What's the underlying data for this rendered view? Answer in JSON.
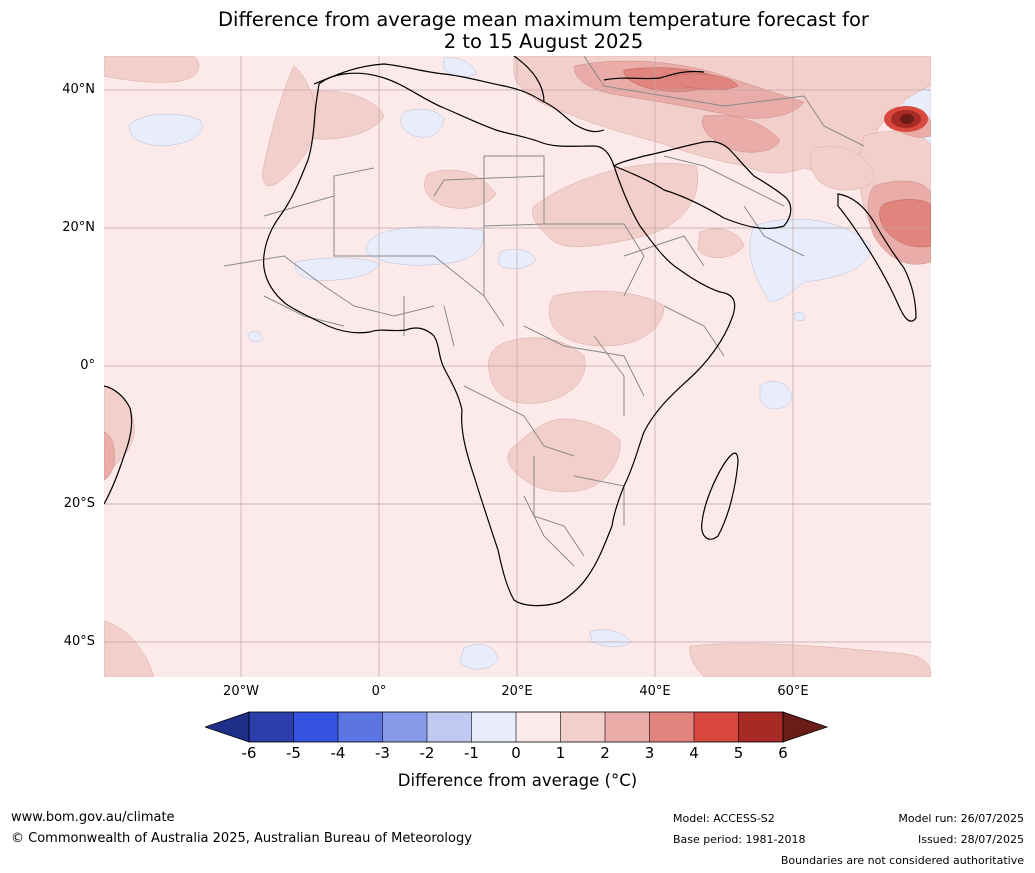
{
  "header": {
    "title_line1": "Difference from average mean maximum temperature forecast for",
    "title_line2": "2 to 15 August 2025"
  },
  "map": {
    "lat_labels": [
      "40°N",
      "20°N",
      "0°",
      "20°S",
      "40°S"
    ],
    "lon_labels": [
      "20°W",
      "0°",
      "20°E",
      "40°E",
      "60°E"
    ],
    "anomaly_colors": {
      "below_-1_to_0": "#e8ecfb",
      "0_to_1": "#fbeae9",
      "1_to_2": "#f3cfcc",
      "2_to_3": "#eaaca8",
      "3_to_4": "#e2847e",
      "4_to_5": "#d9483f",
      "5_to_6": "#a82a24",
      "above_6": "#6a1d17"
    }
  },
  "colorbar": {
    "ticks": [
      "-6",
      "-5",
      "-4",
      "-3",
      "-2",
      "-1",
      "0",
      "1",
      "2",
      "3",
      "4",
      "5",
      "6"
    ],
    "colors": [
      "#1e2f8a",
      "#2b3eab",
      "#3452e0",
      "#5b75e3",
      "#8699e8",
      "#c0c9f2",
      "#e8ecfb",
      "#fbeae9",
      "#f3cfcc",
      "#eaaca8",
      "#e2847e",
      "#d9483f",
      "#a82a24",
      "#6a1d17"
    ],
    "label": "Difference from average (°C)"
  },
  "footer": {
    "website": "www.bom.gov.au/climate",
    "copyright": "© Commonwealth of Australia 2025, Australian Bureau of Meteorology",
    "model": "Model: ACCESS-S2",
    "base_period": "Base period: 1981-2018",
    "model_run": "Model run: 26/07/2025",
    "issued": "Issued: 28/07/2025",
    "disclaimer": "Boundaries are not considered authoritative"
  }
}
